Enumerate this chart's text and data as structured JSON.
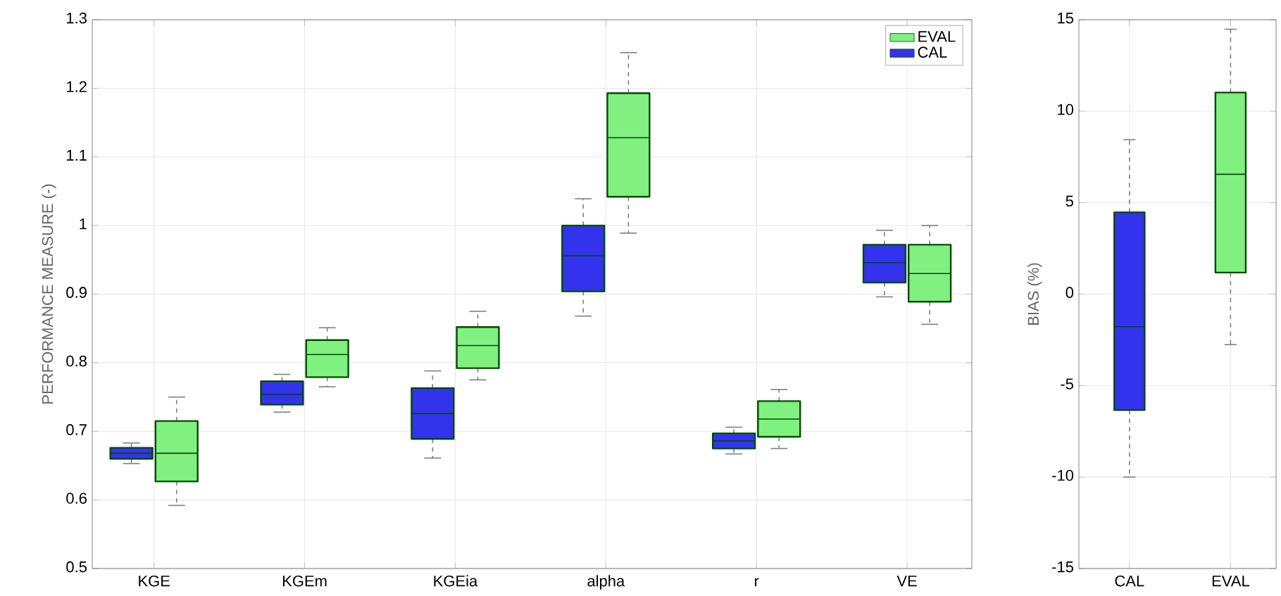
{
  "chart_data": [
    {
      "type": "box",
      "ylabel": "PERFORMANCE MEASURE (-)",
      "categories": [
        "KGE",
        "KGEm",
        "KGEia",
        "alpha",
        "r",
        "VE"
      ],
      "ylim": [
        0.5,
        1.3
      ],
      "yticks": [
        0.5,
        0.6,
        0.7,
        0.8,
        0.9,
        1,
        1.1,
        1.2,
        1.3
      ],
      "grid": true,
      "legend": "top right",
      "series": [
        {
          "name": "CAL",
          "color": "#3333ee",
          "boxes": [
            {
              "low": 0.653,
              "q1": 0.66,
              "median": 0.668,
              "q3": 0.676,
              "high": 0.683
            },
            {
              "low": 0.728,
              "q1": 0.739,
              "median": 0.754,
              "q3": 0.773,
              "high": 0.783
            },
            {
              "low": 0.661,
              "q1": 0.689,
              "median": 0.726,
              "q3": 0.763,
              "high": 0.788
            },
            {
              "low": 0.868,
              "q1": 0.904,
              "median": 0.956,
              "q3": 1.0,
              "high": 1.039
            },
            {
              "low": 0.667,
              "q1": 0.675,
              "median": 0.686,
              "q3": 0.697,
              "high": 0.706
            },
            {
              "low": 0.896,
              "q1": 0.917,
              "median": 0.946,
              "q3": 0.972,
              "high": 0.993
            }
          ]
        },
        {
          "name": "EVAL",
          "color": "#80f080",
          "boxes": [
            {
              "low": 0.592,
              "q1": 0.627,
              "median": 0.668,
              "q3": 0.715,
              "high": 0.75
            },
            {
              "low": 0.765,
              "q1": 0.779,
              "median": 0.812,
              "q3": 0.833,
              "high": 0.851
            },
            {
              "low": 0.775,
              "q1": 0.792,
              "median": 0.825,
              "q3": 0.852,
              "high": 0.875
            },
            {
              "low": 0.989,
              "q1": 1.042,
              "median": 1.128,
              "q3": 1.193,
              "high": 1.252
            },
            {
              "low": 0.675,
              "q1": 0.692,
              "median": 0.718,
              "q3": 0.744,
              "high": 0.761
            },
            {
              "low": 0.856,
              "q1": 0.889,
              "median": 0.93,
              "q3": 0.972,
              "high": 1.0
            }
          ]
        }
      ]
    },
    {
      "type": "box",
      "ylabel": "BIAS (%)",
      "categories": [
        "CAL",
        "EVAL"
      ],
      "ylim": [
        -15,
        15
      ],
      "yticks": [
        -15,
        -10,
        -5,
        0,
        5,
        10,
        15
      ],
      "grid": true,
      "colors": [
        "#3333ee",
        "#80f080"
      ],
      "boxes": [
        {
          "low": -10.0,
          "q1": -6.34,
          "median": -1.78,
          "q3": 4.47,
          "high": 8.44
        },
        {
          "low": -2.76,
          "q1": 1.18,
          "median": 6.55,
          "q3": 11.02,
          "high": 14.48
        }
      ]
    }
  ]
}
